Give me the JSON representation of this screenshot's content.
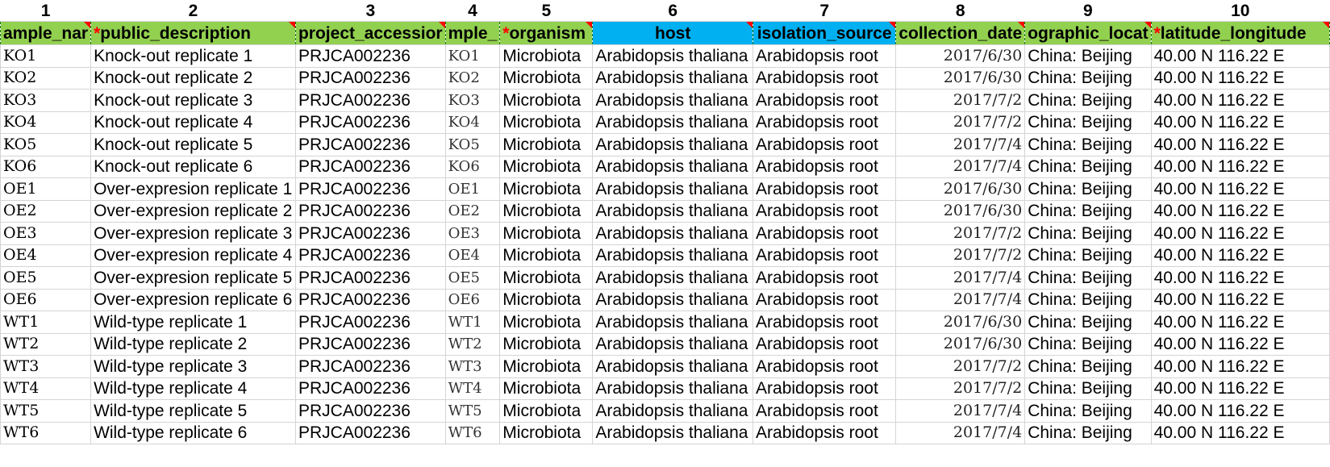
{
  "column_numbers": [
    "1",
    "2",
    "3",
    "4",
    "5",
    "6",
    "7",
    "8",
    "9",
    "10"
  ],
  "headers": [
    {
      "required": false,
      "text": "ample_nar"
    },
    {
      "required": true,
      "text": "public_description"
    },
    {
      "required": false,
      "text": "project_accessior"
    },
    {
      "required": false,
      "text": "mple_"
    },
    {
      "required": true,
      "text": "organism"
    },
    {
      "required": false,
      "text": "host"
    },
    {
      "required": false,
      "text": "isolation_source"
    },
    {
      "required": false,
      "text": "collection_date"
    },
    {
      "required": false,
      "text": "ographic_locat"
    },
    {
      "required": true,
      "text": "latitude_longitude"
    }
  ],
  "header_colors": {
    "green": "#92d050",
    "blue": "#00b0f0",
    "required_mark": "#ff0000"
  },
  "rows": [
    {
      "sample_name": "KO1",
      "description": "Knock-out replicate 1",
      "project": "PRJCA002236",
      "sample_title": "KO1",
      "organism": "Microbiota",
      "host": "Arabidopsis thaliana",
      "source": "Arabidopsis root",
      "date": "2017/6/30",
      "location": "China: Beijing",
      "latlon": "40.00 N 116.22 E"
    },
    {
      "sample_name": "KO2",
      "description": "Knock-out replicate 2",
      "project": "PRJCA002236",
      "sample_title": "KO2",
      "organism": "Microbiota",
      "host": "Arabidopsis thaliana",
      "source": "Arabidopsis root",
      "date": "2017/6/30",
      "location": "China: Beijing",
      "latlon": "40.00 N 116.22 E"
    },
    {
      "sample_name": "KO3",
      "description": "Knock-out replicate 3",
      "project": "PRJCA002236",
      "sample_title": "KO3",
      "organism": "Microbiota",
      "host": "Arabidopsis thaliana",
      "source": "Arabidopsis root",
      "date": "2017/7/2",
      "location": "China: Beijing",
      "latlon": "40.00 N 116.22 E"
    },
    {
      "sample_name": "KO4",
      "description": "Knock-out replicate 4",
      "project": "PRJCA002236",
      "sample_title": "KO4",
      "organism": "Microbiota",
      "host": "Arabidopsis thaliana",
      "source": "Arabidopsis root",
      "date": "2017/7/2",
      "location": "China: Beijing",
      "latlon": "40.00 N 116.22 E"
    },
    {
      "sample_name": "KO5",
      "description": "Knock-out replicate 5",
      "project": "PRJCA002236",
      "sample_title": "KO5",
      "organism": "Microbiota",
      "host": "Arabidopsis thaliana",
      "source": "Arabidopsis root",
      "date": "2017/7/4",
      "location": "China: Beijing",
      "latlon": "40.00 N 116.22 E"
    },
    {
      "sample_name": "KO6",
      "description": "Knock-out replicate 6",
      "project": "PRJCA002236",
      "sample_title": "KO6",
      "organism": "Microbiota",
      "host": "Arabidopsis thaliana",
      "source": "Arabidopsis root",
      "date": "2017/7/4",
      "location": "China: Beijing",
      "latlon": "40.00 N 116.22 E"
    },
    {
      "sample_name": "OE1",
      "description": "Over-expresion replicate 1",
      "project": "PRJCA002236",
      "sample_title": "OE1",
      "organism": "Microbiota",
      "host": "Arabidopsis thaliana",
      "source": "Arabidopsis root",
      "date": "2017/6/30",
      "location": "China: Beijing",
      "latlon": "40.00 N 116.22 E"
    },
    {
      "sample_name": "OE2",
      "description": "Over-expresion replicate 2",
      "project": "PRJCA002236",
      "sample_title": "OE2",
      "organism": "Microbiota",
      "host": "Arabidopsis thaliana",
      "source": "Arabidopsis root",
      "date": "2017/6/30",
      "location": "China: Beijing",
      "latlon": "40.00 N 116.22 E"
    },
    {
      "sample_name": "OE3",
      "description": "Over-expresion replicate 3",
      "project": "PRJCA002236",
      "sample_title": "OE3",
      "organism": "Microbiota",
      "host": "Arabidopsis thaliana",
      "source": "Arabidopsis root",
      "date": "2017/7/2",
      "location": "China: Beijing",
      "latlon": "40.00 N 116.22 E"
    },
    {
      "sample_name": "OE4",
      "description": "Over-expresion replicate 4",
      "project": "PRJCA002236",
      "sample_title": "OE4",
      "organism": "Microbiota",
      "host": "Arabidopsis thaliana",
      "source": "Arabidopsis root",
      "date": "2017/7/2",
      "location": "China: Beijing",
      "latlon": "40.00 N 116.22 E"
    },
    {
      "sample_name": "OE5",
      "description": "Over-expresion replicate 5",
      "project": "PRJCA002236",
      "sample_title": "OE5",
      "organism": "Microbiota",
      "host": "Arabidopsis thaliana",
      "source": "Arabidopsis root",
      "date": "2017/7/4",
      "location": "China: Beijing",
      "latlon": "40.00 N 116.22 E"
    },
    {
      "sample_name": "OE6",
      "description": "Over-expresion replicate 6",
      "project": "PRJCA002236",
      "sample_title": "OE6",
      "organism": "Microbiota",
      "host": "Arabidopsis thaliana",
      "source": "Arabidopsis root",
      "date": "2017/7/4",
      "location": "China: Beijing",
      "latlon": "40.00 N 116.22 E"
    },
    {
      "sample_name": "WT1",
      "description": "Wild-type replicate 1",
      "project": "PRJCA002236",
      "sample_title": "WT1",
      "organism": "Microbiota",
      "host": "Arabidopsis thaliana",
      "source": "Arabidopsis root",
      "date": "2017/6/30",
      "location": "China: Beijing",
      "latlon": "40.00 N 116.22 E"
    },
    {
      "sample_name": "WT2",
      "description": "Wild-type replicate 2",
      "project": "PRJCA002236",
      "sample_title": "WT2",
      "organism": "Microbiota",
      "host": "Arabidopsis thaliana",
      "source": "Arabidopsis root",
      "date": "2017/6/30",
      "location": "China: Beijing",
      "latlon": "40.00 N 116.22 E"
    },
    {
      "sample_name": "WT3",
      "description": "Wild-type replicate 3",
      "project": "PRJCA002236",
      "sample_title": "WT3",
      "organism": "Microbiota",
      "host": "Arabidopsis thaliana",
      "source": "Arabidopsis root",
      "date": "2017/7/2",
      "location": "China: Beijing",
      "latlon": "40.00 N 116.22 E"
    },
    {
      "sample_name": "WT4",
      "description": "Wild-type replicate 4",
      "project": "PRJCA002236",
      "sample_title": "WT4",
      "organism": "Microbiota",
      "host": "Arabidopsis thaliana",
      "source": "Arabidopsis root",
      "date": "2017/7/2",
      "location": "China: Beijing",
      "latlon": "40.00 N 116.22 E"
    },
    {
      "sample_name": "WT5",
      "description": "Wild-type replicate 5",
      "project": "PRJCA002236",
      "sample_title": "WT5",
      "organism": "Microbiota",
      "host": "Arabidopsis thaliana",
      "source": "Arabidopsis root",
      "date": "2017/7/4",
      "location": "China: Beijing",
      "latlon": "40.00 N 116.22 E"
    },
    {
      "sample_name": "WT6",
      "description": "Wild-type replicate 6",
      "project": "PRJCA002236",
      "sample_title": "WT6",
      "organism": "Microbiota",
      "host": "Arabidopsis thaliana",
      "source": "Arabidopsis root",
      "date": "2017/7/4",
      "location": "China: Beijing",
      "latlon": "40.00 N 116.22 E"
    }
  ]
}
